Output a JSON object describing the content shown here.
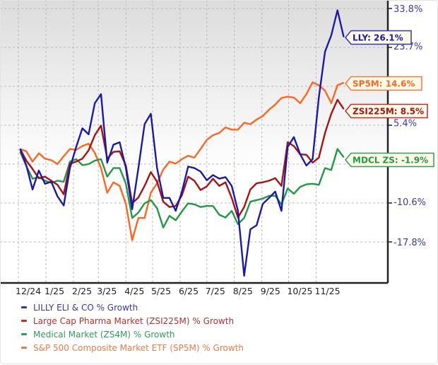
{
  "chart_data": {
    "type": "line",
    "y_scale": "log",
    "ylim": [
      -24.3,
      36.2
    ],
    "grid": true,
    "legend_placement": "bottom",
    "y_tick_labels": [
      "33.8%",
      "23.7%",
      "5.4%",
      "-10.6%",
      "-17.8%"
    ],
    "y_tick_values": [
      33.8,
      23.7,
      5.4,
      -10.6,
      -17.8
    ],
    "x_tick_labels": [
      "12/24",
      "1/25",
      "2/25",
      "3/25",
      "4/25",
      "5/25",
      "6/25",
      "7/25",
      "8/25",
      "9/25",
      "10/25",
      "11/25"
    ],
    "x_tick_dates": [
      "2024-12-01",
      "2025-01-01",
      "2025-02-01",
      "2025-03-01",
      "2025-04-01",
      "2025-05-01",
      "2025-06-01",
      "2025-07-01",
      "2025-08-01",
      "2025-09-01",
      "2025-10-01",
      "2025-11-01"
    ],
    "x": [
      "2024-12-03",
      "2024-12-10",
      "2024-12-17",
      "2024-12-24",
      "2024-12-31",
      "2025-01-07",
      "2025-01-14",
      "2025-01-21",
      "2025-01-28",
      "2025-02-04",
      "2025-02-11",
      "2025-02-18",
      "2025-02-25",
      "2025-03-04",
      "2025-03-11",
      "2025-03-18",
      "2025-03-25",
      "2025-04-01",
      "2025-04-08",
      "2025-04-15",
      "2025-04-22",
      "2025-04-29",
      "2025-05-06",
      "2025-05-13",
      "2025-05-20",
      "2025-05-27",
      "2025-06-03",
      "2025-06-10",
      "2025-06-17",
      "2025-06-24",
      "2025-07-01",
      "2025-07-08",
      "2025-07-15",
      "2025-07-22",
      "2025-07-29",
      "2025-08-05",
      "2025-08-12",
      "2025-08-19",
      "2025-08-26",
      "2025-09-02",
      "2025-09-09",
      "2025-09-16",
      "2025-09-23",
      "2025-09-30",
      "2025-10-07",
      "2025-10-14",
      "2025-10-21",
      "2025-10-28",
      "2025-11-04",
      "2025-11-11",
      "2025-11-18",
      "2025-11-25",
      "2025-12-02"
    ],
    "series": [
      {
        "name": "LILLY ELI & CO % Growth",
        "callout": "LLY: 26.1%",
        "color": "#1a1aaa",
        "legend_color": "#3535b5",
        "values": [
          -0.2,
          -3.6,
          -8.3,
          -4.6,
          -7.2,
          -6.8,
          -9.6,
          -11.3,
          -4.1,
          0.2,
          4.2,
          2.9,
          9.8,
          11.9,
          -3.0,
          0.7,
          1.2,
          -4.1,
          -12.0,
          -4.1,
          5.1,
          7.4,
          -4.1,
          -9.9,
          -9.9,
          -12.3,
          -8.7,
          -3.8,
          -4.1,
          -4.8,
          -6.5,
          -5.5,
          -6.2,
          -5.9,
          -7.6,
          -12.3,
          -23.4,
          -15.6,
          -14.9,
          -11.0,
          -9.9,
          -8.7,
          -12.3,
          0.2,
          2.3,
          -1.3,
          -3.6,
          -2.3,
          11.1,
          22.3,
          26.5,
          33.3,
          26.1
        ]
      },
      {
        "name": "Large Cap Pharma Market (ZSI225M) % Growth",
        "callout": "ZSI225M: 8.5%",
        "color": "#aa1111",
        "legend_color": "#b83030",
        "values": [
          -0.2,
          -2.6,
          -4.3,
          -6.1,
          -5.8,
          -6.6,
          -7.4,
          -9.2,
          -3.2,
          -2.8,
          -2.2,
          -0.5,
          2.7,
          4.8,
          -2.2,
          -0.8,
          -0.7,
          -3.6,
          -10.9,
          -9.8,
          -7.6,
          -4.9,
          -6.8,
          -10.6,
          -11.6,
          -11.4,
          -9.4,
          -5.8,
          -6.6,
          -8.4,
          -7.7,
          -6.2,
          -7.6,
          -6.9,
          -9.9,
          -13.5,
          -11.6,
          -8.3,
          -7.1,
          -6.9,
          -6.6,
          -6.1,
          -7.6,
          1.2,
          0.4,
          -1.3,
          -1.4,
          -3.0,
          -2.0,
          3.2,
          7.4,
          10.6,
          8.5
        ]
      },
      {
        "name": "Medical Market (ZS4M) % Growth",
        "callout": "MDCL ZS: -1.9%",
        "color": "#229944",
        "legend_color": "#2e9e5a",
        "values": [
          -0.8,
          -3.7,
          -6.2,
          -5.9,
          -6.6,
          -7.0,
          -6.6,
          -6.8,
          -2.8,
          -2.3,
          -3.5,
          -3.3,
          -2.6,
          -2.3,
          -5.8,
          -4.1,
          -4.1,
          -7.2,
          -13.6,
          -12.6,
          -10.9,
          -10.3,
          -11.8,
          -15.3,
          -13.2,
          -14.0,
          -12.4,
          -10.9,
          -11.1,
          -11.6,
          -11.4,
          -11.4,
          -13.0,
          -13.5,
          -12.3,
          -14.7,
          -13.6,
          -10.6,
          -10.3,
          -10.0,
          -9.5,
          -9.5,
          -11.1,
          -8.1,
          -9.1,
          -7.8,
          -7.3,
          -7.2,
          -7.4,
          -4.1,
          -4.5,
          -0.2,
          -1.9
        ]
      },
      {
        "name": "S&P 500 Composite Market ETF (SP5M) % Growth",
        "callout": "SP5M: 14.6%",
        "color": "#ff6622",
        "legend_color": "#f07a45",
        "values": [
          -0.2,
          -0.7,
          -2.8,
          -1.1,
          -2.2,
          -2.5,
          -3.3,
          -1.7,
          -0.2,
          -0.4,
          0.4,
          0.9,
          -1.0,
          -4.1,
          -8.9,
          -6.9,
          -7.6,
          -11.0,
          -17.5,
          -13.6,
          -13.6,
          -8.9,
          -7.1,
          -4.4,
          -2.8,
          -3.2,
          -2.3,
          -1.6,
          -2.0,
          -0.2,
          1.7,
          2.7,
          3.2,
          4.4,
          3.9,
          3.9,
          5.4,
          5.1,
          6.1,
          6.9,
          8.3,
          9.5,
          11.0,
          11.3,
          11.1,
          9.8,
          11.9,
          14.7,
          14.0,
          12.7,
          9.8,
          14.0,
          14.6
        ]
      }
    ],
    "axis_label_color": "#3a3aae"
  }
}
